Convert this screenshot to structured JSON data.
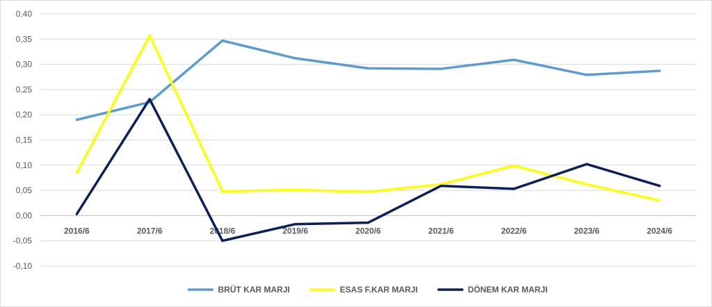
{
  "chart_data": {
    "type": "line",
    "categories": [
      "2016/6",
      "2017/6",
      "2018/6",
      "2019/6",
      "2020/6",
      "2021/6",
      "2022/6",
      "2023/6",
      "2024/6"
    ],
    "series": [
      {
        "name": "BRÜT KAR MARJI",
        "color": "#5b9bd5",
        "values": [
          0.19,
          0.225,
          0.347,
          0.312,
          0.292,
          0.291,
          0.309,
          0.279,
          0.287
        ]
      },
      {
        "name": "ESAS F.KAR MARJI",
        "color": "#ffff00",
        "values": [
          0.085,
          0.357,
          0.048,
          0.051,
          0.047,
          0.062,
          0.099,
          0.062,
          0.03
        ]
      },
      {
        "name": "DÖNEM KAR MARJI",
        "color": "#0b1f5c",
        "values": [
          0.003,
          0.231,
          -0.05,
          -0.017,
          -0.014,
          0.059,
          0.053,
          0.102,
          0.059
        ]
      }
    ],
    "yticks": [
      "0,40",
      "0,35",
      "0,30",
      "0,25",
      "0,20",
      "0,15",
      "0,10",
      "0,05",
      "0,00",
      "-0,05",
      "-0,10"
    ],
    "ylim": [
      -0.1,
      0.4
    ],
    "ystep": 0.05,
    "grid": true,
    "legend_position": "bottom",
    "title": "",
    "xlabel": "",
    "ylabel": ""
  }
}
